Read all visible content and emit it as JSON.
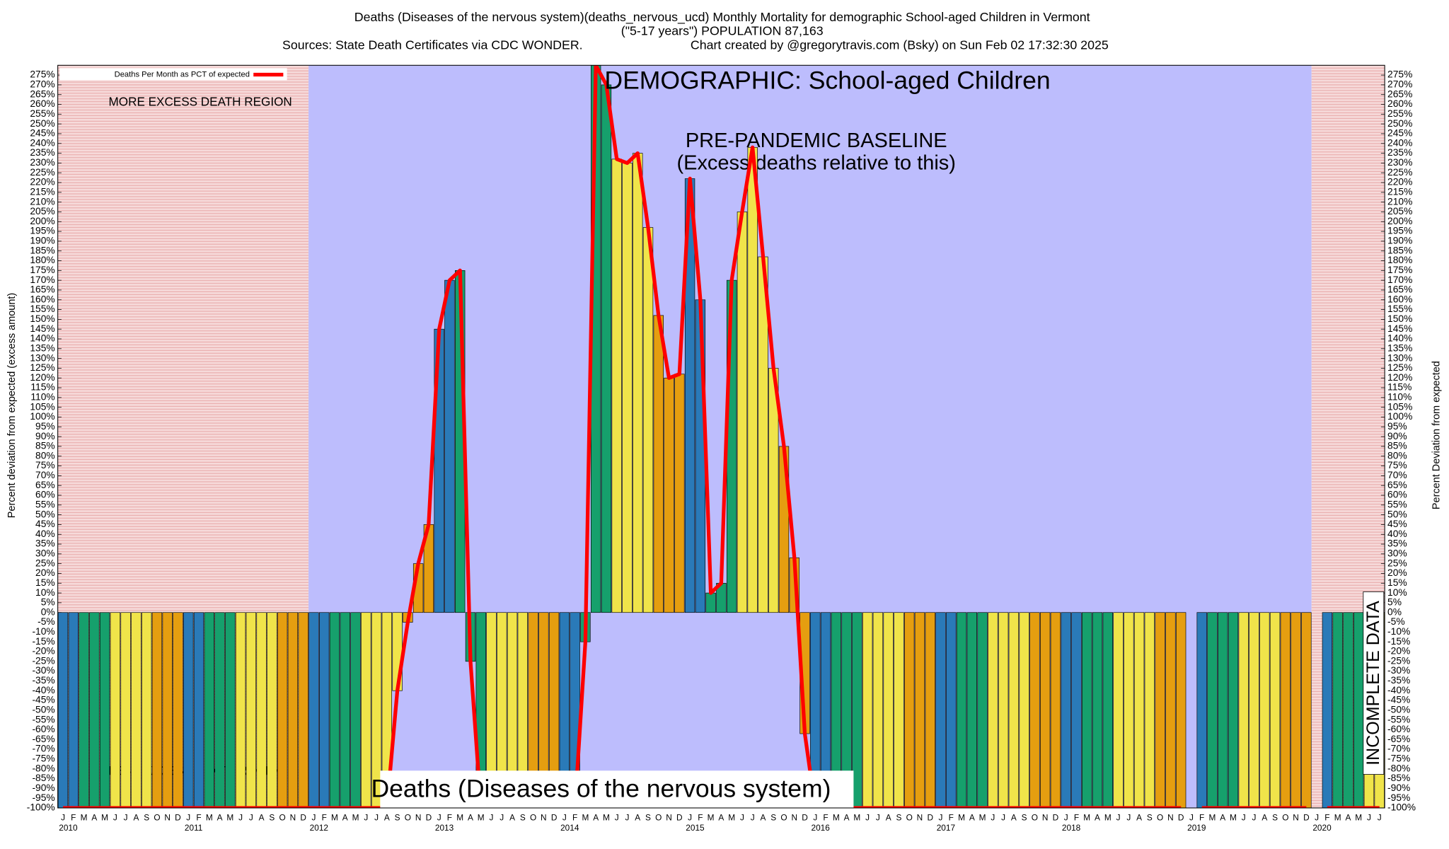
{
  "chart_data": {
    "type": "bar",
    "title": "Deaths (Diseases of the nervous system)(deaths_nervous_ucd) Monthly Mortality for demographic School-aged Children in Vermont",
    "subtitle": "(\"5-17 years\") POPULATION 87,163",
    "sources": "Sources: State Death Certificates via CDC WONDER.",
    "credit": "Chart created by @gregorytravis.com (Bsky) on Sun Feb 02 17:32:30 2025",
    "ylabel": "Percent deviation from expected (excess amount)",
    "y2label": "Percent Deviation from expected",
    "annotations": {
      "more": "MORE EXCESS DEATH REGION",
      "less": "LESS EXCESS DEATH REGION",
      "demographic": "DEMOGRAPHIC: School-aged Children",
      "baseline": "PRE-PANDEMIC BASELINE",
      "baseline_note": "(Excess deaths relative to this)",
      "cause": "Deaths (Diseases of the nervous system)",
      "incomplete": "INCOMPLETE DATA"
    },
    "categories": [
      "J",
      "F",
      "M",
      "A",
      "M",
      "J",
      "J",
      "A",
      "S",
      "O",
      "N",
      "D",
      "J",
      "F",
      "M",
      "A",
      "M",
      "J",
      "J",
      "A",
      "S",
      "O",
      "N",
      "D",
      "J",
      "F",
      "M",
      "A",
      "M",
      "J",
      "J",
      "A",
      "S",
      "O",
      "N",
      "D",
      "J",
      "F",
      "M",
      "A",
      "M",
      "J",
      "J",
      "A",
      "S",
      "O",
      "N",
      "D",
      "J",
      "F",
      "M",
      "A",
      "M",
      "J",
      "J",
      "A",
      "S",
      "O",
      "N",
      "D",
      "J",
      "F",
      "M",
      "A",
      "M",
      "J",
      "J",
      "A",
      "S",
      "O",
      "N",
      "D",
      "J",
      "F",
      "M",
      "A",
      "M",
      "J",
      "J",
      "A",
      "S",
      "O",
      "N",
      "D",
      "J",
      "F",
      "M",
      "A",
      "M",
      "J",
      "J",
      "A",
      "S",
      "O",
      "N",
      "D",
      "J",
      "F",
      "M",
      "A",
      "M",
      "J",
      "J",
      "A",
      "S",
      "O",
      "N",
      "D",
      "J",
      "F",
      "M",
      "A",
      "M",
      "J",
      "J",
      "A",
      "S",
      "O",
      "N",
      "D",
      "J",
      "F",
      "M",
      "A",
      "M",
      "J",
      "J"
    ],
    "year_labels": [
      "2010",
      "2011",
      "2012",
      "2013",
      "2014",
      "2015",
      "2016",
      "2017",
      "2018",
      "2019",
      "2020"
    ],
    "month_colors": [
      "#2a7ab8",
      "#2a7ab8",
      "#16a06c",
      "#16a06c",
      "#16a06c",
      "#f0e44a",
      "#f0e44a",
      "#f0e44a",
      "#f0e44a",
      "#e59e10",
      "#e59e10",
      "#e59e10"
    ],
    "series": [
      {
        "name": "Deaths Per Month as PCT of expected",
        "color": "#ff0000",
        "values": [
          -100,
          -100,
          -100,
          -100,
          -100,
          -100,
          -100,
          -100,
          -100,
          -100,
          -100,
          -100,
          -100,
          -100,
          -100,
          -100,
          -100,
          -100,
          -100,
          -100,
          -100,
          -100,
          -100,
          -100,
          -100,
          -100,
          -100,
          -100,
          -100,
          -100,
          -100,
          -100,
          -40,
          -5,
          25,
          45,
          145,
          170,
          175,
          -25,
          -100,
          -100,
          -100,
          -100,
          -100,
          -100,
          -100,
          -100,
          -100,
          -100,
          -15,
          280,
          270,
          232,
          230,
          235,
          197,
          152,
          120,
          122,
          222,
          160,
          10,
          15,
          170,
          205,
          238,
          182,
          125,
          85,
          28,
          -62,
          -100,
          -100,
          -100,
          -100,
          -100,
          -100,
          -100,
          -100,
          -100,
          -100,
          -100,
          -100,
          -100,
          -100,
          -100,
          -100,
          -100,
          -100,
          -100,
          -100,
          -100,
          -100,
          -100,
          -100,
          -100,
          -100,
          -100,
          -100,
          -100,
          -100,
          -100,
          -100,
          -100,
          -100,
          -100,
          -100,
          null,
          -100,
          -100,
          -100,
          -100,
          -100,
          -100,
          -100,
          -100,
          -100,
          -100,
          -100,
          null,
          -100,
          -100,
          -100,
          -100,
          -100,
          -100
        ]
      }
    ],
    "ylim": [
      -100,
      280
    ],
    "yticks": [
      {
        "value": -100,
        "label": "-100%"
      },
      {
        "value": -95,
        "label": "-95%"
      },
      {
        "value": -90,
        "label": "-90%"
      },
      {
        "value": -85,
        "label": "-85%"
      },
      {
        "value": -80,
        "label": "-80%"
      },
      {
        "value": -75,
        "label": "-75%"
      },
      {
        "value": -70,
        "label": "-70%"
      },
      {
        "value": -65,
        "label": "-65%"
      },
      {
        "value": -60,
        "label": "-60%"
      },
      {
        "value": -55,
        "label": "-55%"
      },
      {
        "value": -50,
        "label": "-50%"
      },
      {
        "value": -45,
        "label": "-45%"
      },
      {
        "value": -40,
        "label": "-40%"
      },
      {
        "value": -35,
        "label": "-35%"
      },
      {
        "value": -30,
        "label": "-30%"
      },
      {
        "value": -25,
        "label": "-25%"
      },
      {
        "value": -20,
        "label": "-20%"
      },
      {
        "value": -15,
        "label": "-15%"
      },
      {
        "value": -10,
        "label": "-10%"
      },
      {
        "value": -5,
        "label": "-5%"
      },
      {
        "value": 0,
        "label": "0%"
      },
      {
        "value": 5,
        "label": "5%"
      },
      {
        "value": 10,
        "label": "10%"
      },
      {
        "value": 15,
        "label": "15%"
      },
      {
        "value": 20,
        "label": "20%"
      },
      {
        "value": 25,
        "label": "25%"
      },
      {
        "value": 30,
        "label": "30%"
      },
      {
        "value": 35,
        "label": "35%"
      },
      {
        "value": 40,
        "label": "40%"
      },
      {
        "value": 45,
        "label": "45%"
      },
      {
        "value": 50,
        "label": "50%"
      },
      {
        "value": 55,
        "label": "55%"
      },
      {
        "value": 60,
        "label": "60%"
      },
      {
        "value": 65,
        "label": "65%"
      },
      {
        "value": 70,
        "label": "70%"
      },
      {
        "value": 75,
        "label": "75%"
      },
      {
        "value": 80,
        "label": "80%"
      },
      {
        "value": 85,
        "label": "85%"
      },
      {
        "value": 90,
        "label": "90%"
      },
      {
        "value": 95,
        "label": "95%"
      },
      {
        "value": 100,
        "label": "100%"
      },
      {
        "value": 105,
        "label": "105%"
      },
      {
        "value": 110,
        "label": "110%"
      },
      {
        "value": 115,
        "label": "115%"
      },
      {
        "value": 120,
        "label": "120%"
      },
      {
        "value": 125,
        "label": "125%"
      },
      {
        "value": 130,
        "label": "130%"
      },
      {
        "value": 135,
        "label": "135%"
      },
      {
        "value": 140,
        "label": "140%"
      },
      {
        "value": 145,
        "label": "145%"
      },
      {
        "value": 150,
        "label": "150%"
      },
      {
        "value": 155,
        "label": "155%"
      },
      {
        "value": 160,
        "label": "160%"
      },
      {
        "value": 165,
        "label": "165%"
      },
      {
        "value": 170,
        "label": "170%"
      },
      {
        "value": 175,
        "label": "175%"
      },
      {
        "value": 180,
        "label": "180%"
      },
      {
        "value": 185,
        "label": "185%"
      },
      {
        "value": 190,
        "label": "190%"
      },
      {
        "value": 195,
        "label": "195%"
      },
      {
        "value": 200,
        "label": "200%"
      },
      {
        "value": 205,
        "label": "205%"
      },
      {
        "value": 210,
        "label": "210%"
      },
      {
        "value": 215,
        "label": "215%"
      },
      {
        "value": 220,
        "label": "220%"
      },
      {
        "value": 225,
        "label": "225%"
      },
      {
        "value": 230,
        "label": "230%"
      },
      {
        "value": 235,
        "label": "235%"
      },
      {
        "value": 240,
        "label": "240%"
      },
      {
        "value": 245,
        "label": "245%"
      },
      {
        "value": 250,
        "label": "250%"
      },
      {
        "value": 255,
        "label": "255%"
      },
      {
        "value": 260,
        "label": "260%"
      },
      {
        "value": 265,
        "label": "265%"
      },
      {
        "value": 270,
        "label": "270%"
      },
      {
        "value": 275,
        "label": "275%"
      }
    ]
  }
}
